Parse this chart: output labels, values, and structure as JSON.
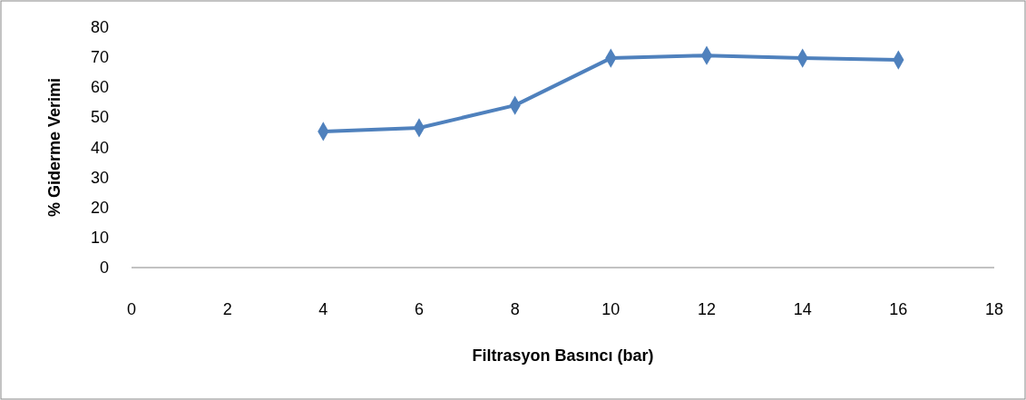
{
  "chart_data": {
    "type": "line",
    "xlabel": "Filtrasyon Basıncı (bar)",
    "ylabel": "% Giderme Verimi",
    "x": [
      4,
      6,
      8,
      10,
      12,
      14,
      16
    ],
    "series": [
      {
        "color": "#4f81bd",
        "values": [
          45.3,
          46.5,
          54.0,
          69.7,
          70.6,
          69.7,
          69.1
        ]
      }
    ],
    "xlim": [
      0,
      18
    ],
    "xticks": [
      0,
      2,
      4,
      6,
      8,
      10,
      12,
      14,
      16,
      18
    ],
    "ylim": [
      0,
      80
    ],
    "yticks": [
      0,
      10,
      20,
      30,
      40,
      50,
      60,
      70,
      80
    ],
    "grid": false,
    "marker": "diamond",
    "line_style": "solid"
  }
}
